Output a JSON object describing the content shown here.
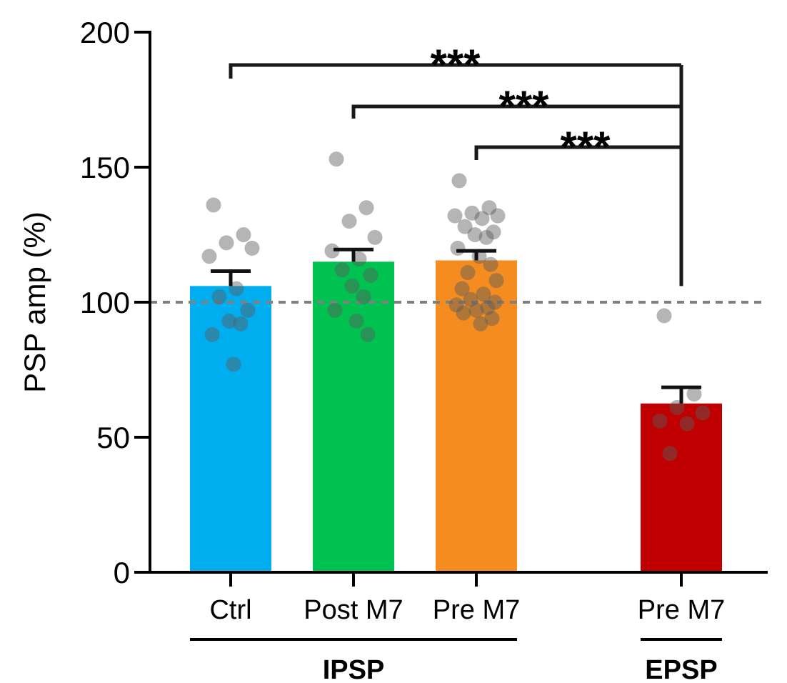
{
  "chart_data": {
    "type": "bar",
    "ylabel": "PSP amp (%)",
    "ylim": [
      0,
      200
    ],
    "yticks": [
      0,
      50,
      100,
      150,
      200
    ],
    "reference_line": {
      "y": 100,
      "style": "dashed",
      "color": "#808080"
    },
    "bars": [
      {
        "category": "Ctrl",
        "group": "IPSP",
        "value": 106,
        "sem": 5.5,
        "color": "#00AEEF",
        "points": [
          136,
          125,
          122,
          120,
          117,
          105,
          102,
          97,
          93,
          92,
          88,
          77
        ]
      },
      {
        "category": "Post M7",
        "group": "IPSP",
        "value": 115,
        "sem": 4.5,
        "color": "#00C250",
        "points": [
          153,
          135,
          130,
          124,
          119,
          116,
          112,
          110,
          106,
          102,
          97,
          93,
          88
        ]
      },
      {
        "category": "Pre M7",
        "group": "IPSP",
        "value": 115.5,
        "sem": 3.5,
        "color": "#F58C20",
        "points": [
          145,
          135,
          133,
          132,
          132,
          131,
          128,
          126,
          125,
          124,
          120,
          117,
          114,
          111,
          108,
          105,
          103,
          101,
          100,
          99,
          98,
          97,
          96,
          94,
          92
        ]
      },
      {
        "category": "Pre M7",
        "group": "EPSP",
        "value": 62.5,
        "sem": 6,
        "color": "#C00000",
        "points": [
          95,
          66,
          61,
          59,
          56,
          55,
          44
        ]
      }
    ],
    "groups": [
      {
        "label": "IPSP",
        "bars": [
          0,
          1,
          2
        ]
      },
      {
        "label": "EPSP",
        "bars": [
          3
        ]
      }
    ],
    "comparisons": [
      {
        "from": "Ctrl",
        "to": "Pre M7 (EPSP)",
        "label": "***"
      },
      {
        "from": "Post M7",
        "to": "Pre M7 (EPSP)",
        "label": "***"
      },
      {
        "from": "Pre M7 (IPSP)",
        "to": "Pre M7 (EPSP)",
        "label": "***"
      }
    ]
  }
}
